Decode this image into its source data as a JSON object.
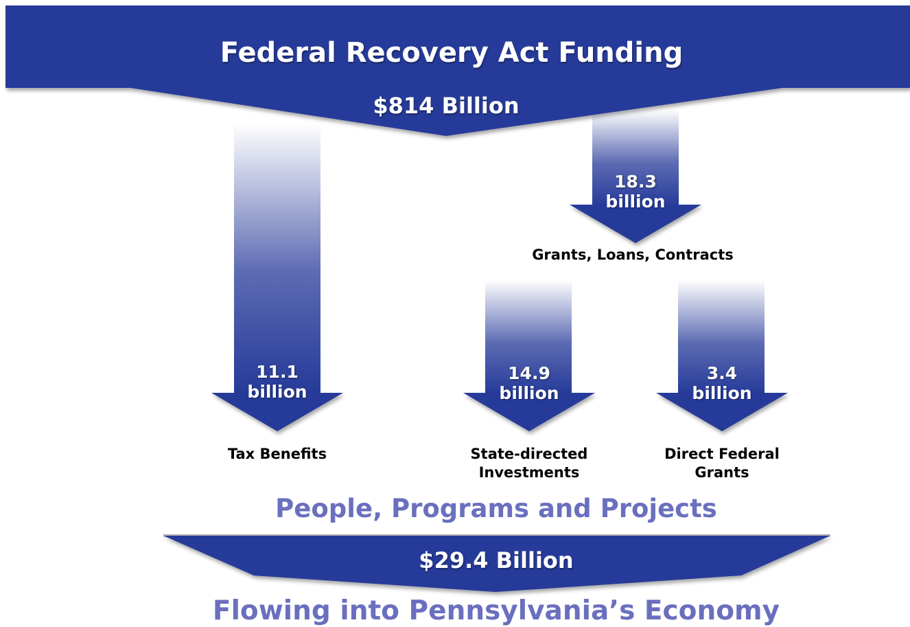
{
  "header": {
    "title": "Federal Recovery Act Funding",
    "total": "$814 Billion"
  },
  "flows": {
    "tax": {
      "value": "11.1",
      "unit": "billion",
      "label": "Tax Benefits"
    },
    "grants_loans_contracts": {
      "value": "18.3",
      "unit": "billion",
      "label": "Grants, Loans, Contracts"
    },
    "state_directed": {
      "value": "14.9",
      "unit": "billion",
      "label_line1": "State-directed",
      "label_line2": "Investments"
    },
    "direct_federal": {
      "value": "3.4",
      "unit": "billion",
      "label_line1": "Direct Federal",
      "label_line2": "Grants"
    }
  },
  "footer": {
    "heading": "People, Programs and Projects",
    "total": "$29.4 Billion",
    "tagline": "Flowing into Pennsylvania’s Economy"
  },
  "colors": {
    "navy": "#263a99",
    "navy_dark": "#1b2a7a",
    "purple_text": "#6a6fbe"
  }
}
